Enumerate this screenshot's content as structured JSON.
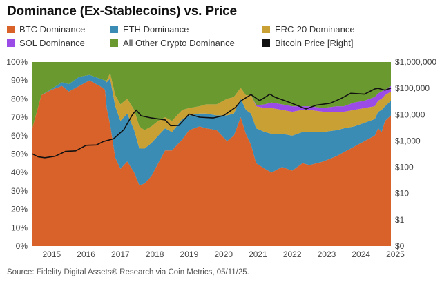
{
  "chart_data": {
    "type": "area",
    "title": "Dominance (Ex-Stablecoins) vs. Price",
    "source": "Source: Fidelity Digital Assets® Research via Coin Metrics, 05/11/25.",
    "legend_placement": "top",
    "x": [
      2014.92,
      2015.2,
      2015.5,
      2015.8,
      2016.0,
      2016.3,
      2016.6,
      2016.9,
      2017.05,
      2017.1,
      2017.2,
      2017.35,
      2017.5,
      2017.7,
      2017.9,
      2018.05,
      2018.2,
      2018.4,
      2018.6,
      2018.8,
      2019.0,
      2019.3,
      2019.5,
      2019.8,
      2020.0,
      2020.3,
      2020.6,
      2020.8,
      2021.0,
      2021.15,
      2021.3,
      2021.45,
      2021.7,
      2021.9,
      2022.2,
      2022.5,
      2022.8,
      2023.0,
      2023.4,
      2023.8,
      2024.0,
      2024.3,
      2024.6,
      2024.9,
      2025.0,
      2025.1,
      2025.2,
      2025.37
    ],
    "series": [
      {
        "name": "BTC Dominance",
        "color": "#D9622B",
        "values": [
          63,
          82,
          85,
          87,
          84,
          87,
          90,
          87,
          85,
          75,
          66,
          48,
          42,
          46,
          40,
          33,
          34,
          38,
          45,
          52,
          52,
          58,
          63,
          65,
          64,
          63,
          57,
          60,
          70,
          61,
          55,
          45,
          42,
          40,
          43,
          41,
          45,
          44,
          46,
          49,
          51,
          54,
          57,
          60,
          64,
          62,
          68,
          71
        ]
      },
      {
        "name": "ETH Dominance",
        "color": "#3B8CB5",
        "values": [
          0,
          0,
          0.5,
          2,
          4,
          5,
          3,
          4,
          5,
          14,
          25,
          28,
          26,
          26,
          23,
          20,
          19,
          18,
          15,
          12,
          10,
          11,
          8,
          7,
          8,
          8,
          14,
          12,
          10,
          13,
          17,
          19,
          20,
          21,
          18,
          19,
          17,
          18,
          16,
          14,
          13,
          11,
          10,
          9,
          9,
          12,
          8,
          8
        ]
      },
      {
        "name": "ERC-20 Dominance",
        "color": "#C9A034",
        "values": [
          0,
          0,
          0,
          0,
          0,
          0,
          0,
          0,
          0,
          1,
          3,
          6,
          9,
          8,
          11,
          12,
          10,
          9,
          8,
          6,
          6,
          5,
          4,
          4,
          5,
          6,
          9,
          9,
          6,
          8,
          10,
          12,
          13,
          14,
          13,
          13,
          12,
          12,
          11,
          10,
          9,
          9,
          8,
          7,
          6,
          6,
          6,
          5
        ]
      },
      {
        "name": "SOL Dominance",
        "color": "#9B4CE6",
        "values": [
          0,
          0,
          0,
          0,
          0,
          0,
          0,
          0,
          0,
          0,
          0,
          0,
          0,
          0,
          0,
          0,
          0,
          0,
          0,
          0,
          0,
          0,
          0,
          0,
          0,
          0,
          0,
          0,
          0,
          0,
          0,
          0.5,
          2,
          3,
          3,
          3,
          2,
          2,
          2,
          3,
          3,
          4,
          4,
          5,
          4,
          4,
          3,
          3
        ]
      },
      {
        "name": "All Other Crypto Dominance",
        "color": "#6A9A2F",
        "values": [
          37,
          18,
          14.5,
          11,
          12,
          8,
          7,
          9,
          10,
          10,
          6,
          18,
          23,
          20,
          26,
          35,
          37,
          35,
          32,
          30,
          32,
          26,
          25,
          24,
          23,
          23,
          20,
          19,
          14,
          18,
          18,
          23.5,
          23,
          22,
          23,
          24,
          24,
          24,
          25,
          24,
          24,
          22,
          21,
          19,
          17,
          16,
          15,
          13
        ]
      }
    ],
    "btc_price": {
      "name": "Bitcoin Price [Right]",
      "color": "#111111",
      "x": [
        2014.92,
        2015.1,
        2015.3,
        2015.6,
        2015.9,
        2016.2,
        2016.5,
        2016.8,
        2017.0,
        2017.3,
        2017.6,
        2017.85,
        2017.96,
        2018.1,
        2018.4,
        2018.8,
        2018.96,
        2019.2,
        2019.5,
        2019.8,
        2020.2,
        2020.5,
        2020.85,
        2021.0,
        2021.3,
        2021.55,
        2021.85,
        2022.0,
        2022.4,
        2022.9,
        2023.2,
        2023.6,
        2023.9,
        2024.2,
        2024.6,
        2024.9,
        2025.0,
        2025.2,
        2025.37
      ],
      "values": [
        330,
        250,
        230,
        260,
        400,
        420,
        680,
        700,
        950,
        1200,
        2700,
        10000,
        15000,
        9000,
        7500,
        6300,
        3800,
        3900,
        10500,
        8000,
        7500,
        9200,
        19000,
        33000,
        58000,
        34000,
        60000,
        46000,
        30000,
        16500,
        23000,
        27000,
        40000,
        65000,
        60000,
        95000,
        100000,
        85000,
        103000
      ]
    },
    "x_ticks": [
      "2015",
      "2016",
      "2017",
      "2018",
      "2019",
      "2020",
      "2021",
      "2022",
      "2023",
      "2024",
      "2025"
    ],
    "y_left_ticks": [
      "0%",
      "10%",
      "20%",
      "30%",
      "40%",
      "50%",
      "60%",
      "70%",
      "80%",
      "90%",
      "100%"
    ],
    "y_right_ticks": [
      "$0",
      "$1",
      "$10",
      "$100",
      "$1,000",
      "$10,000",
      "$100,000",
      "$1,000,000"
    ],
    "ylim_left": [
      0,
      100
    ],
    "ylim_right_log": [
      0.1,
      1000000
    ],
    "grid": false
  }
}
